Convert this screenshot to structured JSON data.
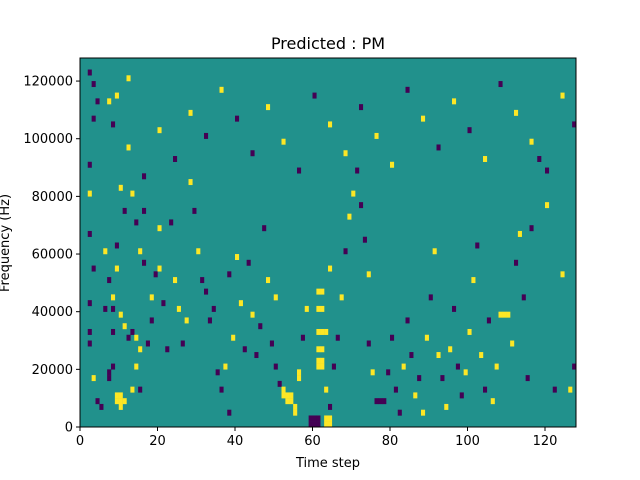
{
  "chart_data": {
    "type": "heatmap",
    "title": "Predicted : PM",
    "xlabel": "Time step",
    "ylabel": "Frequency (Hz)",
    "xlim": [
      0,
      128
    ],
    "ylim": [
      0,
      128000
    ],
    "x_ticks": [
      0,
      20,
      40,
      60,
      80,
      100,
      120
    ],
    "y_ticks": [
      0,
      20000,
      40000,
      60000,
      80000,
      100000,
      120000
    ],
    "x_tick_labels": [
      "0",
      "20",
      "40",
      "60",
      "80",
      "100",
      "120"
    ],
    "y_tick_labels": [
      "0",
      "20000",
      "40000",
      "60000",
      "80000",
      "100000",
      "120000"
    ],
    "n_time_steps": 128,
    "n_freq_bins": 64,
    "freq_bin_width": 2000,
    "colors": {
      "background": "#21918c",
      "high": "#fde725",
      "low": "#440154"
    },
    "cells": [
      {
        "t": 2,
        "f": 61,
        "v": "low"
      },
      {
        "t": 3,
        "f": 59,
        "v": "low"
      },
      {
        "t": 3,
        "f": 53,
        "v": "low"
      },
      {
        "t": 4,
        "f": 56,
        "v": "low"
      },
      {
        "t": 2,
        "f": 45,
        "v": "low"
      },
      {
        "t": 2,
        "f": 40,
        "v": "high"
      },
      {
        "t": 2,
        "f": 33,
        "v": "low"
      },
      {
        "t": 3,
        "f": 27,
        "v": "low"
      },
      {
        "t": 2,
        "f": 21,
        "v": "low"
      },
      {
        "t": 2,
        "f": 16,
        "v": "low"
      },
      {
        "t": 2,
        "f": 14,
        "v": "low"
      },
      {
        "t": 3,
        "f": 8,
        "v": "high"
      },
      {
        "t": 4,
        "f": 4,
        "v": "low"
      },
      {
        "t": 5,
        "f": 3,
        "v": "low"
      },
      {
        "t": 6,
        "f": 30,
        "v": "high"
      },
      {
        "t": 6,
        "f": 20,
        "v": "low"
      },
      {
        "t": 7,
        "f": 25,
        "v": "low"
      },
      {
        "t": 7,
        "f": 8,
        "v": "low"
      },
      {
        "t": 8,
        "f": 20,
        "v": "low"
      },
      {
        "t": 8,
        "f": 16,
        "v": "low"
      },
      {
        "t": 9,
        "f": 4,
        "v": "high"
      },
      {
        "t": 9,
        "f": 5,
        "v": "high"
      },
      {
        "t": 10,
        "f": 4,
        "v": "high"
      },
      {
        "t": 10,
        "f": 5,
        "v": "high"
      },
      {
        "t": 11,
        "f": 4,
        "v": "high"
      },
      {
        "t": 10,
        "f": 3,
        "v": "high"
      },
      {
        "t": 7,
        "f": 9,
        "v": "low"
      },
      {
        "t": 8,
        "f": 10,
        "v": "low"
      },
      {
        "t": 8,
        "f": 22,
        "v": "high"
      },
      {
        "t": 9,
        "f": 27,
        "v": "high"
      },
      {
        "t": 9,
        "f": 31,
        "v": "low"
      },
      {
        "t": 10,
        "f": 19,
        "v": "high"
      },
      {
        "t": 11,
        "f": 17,
        "v": "high"
      },
      {
        "t": 12,
        "f": 15,
        "v": "low"
      },
      {
        "t": 13,
        "f": 16,
        "v": "low"
      },
      {
        "t": 13,
        "f": 6,
        "v": "high"
      },
      {
        "t": 14,
        "f": 15,
        "v": "high"
      },
      {
        "t": 14,
        "f": 10,
        "v": "high"
      },
      {
        "t": 15,
        "f": 13,
        "v": "high"
      },
      {
        "t": 15,
        "f": 6,
        "v": "low"
      },
      {
        "t": 7,
        "f": 56,
        "v": "high"
      },
      {
        "t": 8,
        "f": 52,
        "v": "low"
      },
      {
        "t": 9,
        "f": 57,
        "v": "high"
      },
      {
        "t": 10,
        "f": 41,
        "v": "high"
      },
      {
        "t": 11,
        "f": 37,
        "v": "low"
      },
      {
        "t": 12,
        "f": 60,
        "v": "high"
      },
      {
        "t": 13,
        "f": 40,
        "v": "high"
      },
      {
        "t": 14,
        "f": 35,
        "v": "low"
      },
      {
        "t": 15,
        "f": 30,
        "v": "high"
      },
      {
        "t": 16,
        "f": 37,
        "v": "low"
      },
      {
        "t": 16,
        "f": 28,
        "v": "low"
      },
      {
        "t": 17,
        "f": 14,
        "v": "low"
      },
      {
        "t": 18,
        "f": 18,
        "v": "low"
      },
      {
        "t": 18,
        "f": 22,
        "v": "high"
      },
      {
        "t": 19,
        "f": 26,
        "v": "low"
      },
      {
        "t": 20,
        "f": 27,
        "v": "high"
      },
      {
        "t": 20,
        "f": 34,
        "v": "high"
      },
      {
        "t": 21,
        "f": 21,
        "v": "low"
      },
      {
        "t": 22,
        "f": 13,
        "v": "low"
      },
      {
        "t": 23,
        "f": 35,
        "v": "low"
      },
      {
        "t": 24,
        "f": 25,
        "v": "high"
      },
      {
        "t": 25,
        "f": 20,
        "v": "high"
      },
      {
        "t": 26,
        "f": 14,
        "v": "low"
      },
      {
        "t": 27,
        "f": 18,
        "v": "high"
      },
      {
        "t": 28,
        "f": 42,
        "v": "high"
      },
      {
        "t": 29,
        "f": 37,
        "v": "low"
      },
      {
        "t": 30,
        "f": 30,
        "v": "high"
      },
      {
        "t": 31,
        "f": 25,
        "v": "low"
      },
      {
        "t": 32,
        "f": 23,
        "v": "low"
      },
      {
        "t": 33,
        "f": 18,
        "v": "low"
      },
      {
        "t": 34,
        "f": 20,
        "v": "low"
      },
      {
        "t": 35,
        "f": 9,
        "v": "low"
      },
      {
        "t": 36,
        "f": 6,
        "v": "low"
      },
      {
        "t": 37,
        "f": 10,
        "v": "high"
      },
      {
        "t": 38,
        "f": 2,
        "v": "low"
      },
      {
        "t": 38,
        "f": 26,
        "v": "low"
      },
      {
        "t": 39,
        "f": 15,
        "v": "high"
      },
      {
        "t": 40,
        "f": 29,
        "v": "high"
      },
      {
        "t": 41,
        "f": 21,
        "v": "high"
      },
      {
        "t": 42,
        "f": 13,
        "v": "low"
      },
      {
        "t": 43,
        "f": 28,
        "v": "low"
      },
      {
        "t": 44,
        "f": 19,
        "v": "high"
      },
      {
        "t": 45,
        "f": 12,
        "v": "low"
      },
      {
        "t": 46,
        "f": 17,
        "v": "low"
      },
      {
        "t": 47,
        "f": 34,
        "v": "low"
      },
      {
        "t": 48,
        "f": 25,
        "v": "high"
      },
      {
        "t": 49,
        "f": 14,
        "v": "low"
      },
      {
        "t": 50,
        "f": 10,
        "v": "low"
      },
      {
        "t": 51,
        "f": 7,
        "v": "low"
      },
      {
        "t": 50,
        "f": 22,
        "v": "high"
      },
      {
        "t": 52,
        "f": 5,
        "v": "high"
      },
      {
        "t": 52,
        "f": 6,
        "v": "high"
      },
      {
        "t": 53,
        "f": 4,
        "v": "high"
      },
      {
        "t": 53,
        "f": 5,
        "v": "high"
      },
      {
        "t": 54,
        "f": 4,
        "v": "high"
      },
      {
        "t": 54,
        "f": 5,
        "v": "high"
      },
      {
        "t": 55,
        "f": 2,
        "v": "high"
      },
      {
        "t": 55,
        "f": 3,
        "v": "high"
      },
      {
        "t": 56,
        "f": 8,
        "v": "high"
      },
      {
        "t": 56,
        "f": 9,
        "v": "high"
      },
      {
        "t": 57,
        "f": 15,
        "v": "low"
      },
      {
        "t": 58,
        "f": 20,
        "v": "high"
      },
      {
        "t": 59,
        "f": 0,
        "v": "low"
      },
      {
        "t": 59,
        "f": 1,
        "v": "low"
      },
      {
        "t": 60,
        "f": 0,
        "v": "low"
      },
      {
        "t": 60,
        "f": 1,
        "v": "low"
      },
      {
        "t": 61,
        "f": 1,
        "v": "low"
      },
      {
        "t": 61,
        "f": 0,
        "v": "low"
      },
      {
        "t": 61,
        "f": 10,
        "v": "high"
      },
      {
        "t": 61,
        "f": 11,
        "v": "high"
      },
      {
        "t": 62,
        "f": 10,
        "v": "high"
      },
      {
        "t": 62,
        "f": 11,
        "v": "high"
      },
      {
        "t": 61,
        "f": 13,
        "v": "high"
      },
      {
        "t": 62,
        "f": 13,
        "v": "high"
      },
      {
        "t": 61,
        "f": 16,
        "v": "high"
      },
      {
        "t": 62,
        "f": 16,
        "v": "high"
      },
      {
        "t": 63,
        "f": 16,
        "v": "high"
      },
      {
        "t": 61,
        "f": 20,
        "v": "high"
      },
      {
        "t": 62,
        "f": 20,
        "v": "high"
      },
      {
        "t": 61,
        "f": 23,
        "v": "high"
      },
      {
        "t": 62,
        "f": 23,
        "v": "high"
      },
      {
        "t": 63,
        "f": 0,
        "v": "high"
      },
      {
        "t": 63,
        "f": 1,
        "v": "high"
      },
      {
        "t": 64,
        "f": 0,
        "v": "high"
      },
      {
        "t": 64,
        "f": 1,
        "v": "high"
      },
      {
        "t": 63,
        "f": 6,
        "v": "high"
      },
      {
        "t": 64,
        "f": 3,
        "v": "low"
      },
      {
        "t": 64,
        "f": 27,
        "v": "high"
      },
      {
        "t": 65,
        "f": 10,
        "v": "low"
      },
      {
        "t": 66,
        "f": 15,
        "v": "low"
      },
      {
        "t": 67,
        "f": 22,
        "v": "high"
      },
      {
        "t": 68,
        "f": 30,
        "v": "low"
      },
      {
        "t": 69,
        "f": 36,
        "v": "high"
      },
      {
        "t": 70,
        "f": 40,
        "v": "high"
      },
      {
        "t": 71,
        "f": 44,
        "v": "low"
      },
      {
        "t": 72,
        "f": 38,
        "v": "low"
      },
      {
        "t": 73,
        "f": 32,
        "v": "low"
      },
      {
        "t": 74,
        "f": 26,
        "v": "high"
      },
      {
        "t": 74,
        "f": 14,
        "v": "low"
      },
      {
        "t": 75,
        "f": 9,
        "v": "high"
      },
      {
        "t": 76,
        "f": 4,
        "v": "low"
      },
      {
        "t": 77,
        "f": 4,
        "v": "low"
      },
      {
        "t": 78,
        "f": 4,
        "v": "low"
      },
      {
        "t": 79,
        "f": 9,
        "v": "low"
      },
      {
        "t": 80,
        "f": 15,
        "v": "low"
      },
      {
        "t": 81,
        "f": 6,
        "v": "low"
      },
      {
        "t": 82,
        "f": 2,
        "v": "low"
      },
      {
        "t": 83,
        "f": 10,
        "v": "high"
      },
      {
        "t": 84,
        "f": 18,
        "v": "low"
      },
      {
        "t": 85,
        "f": 12,
        "v": "low"
      },
      {
        "t": 86,
        "f": 5,
        "v": "high"
      },
      {
        "t": 87,
        "f": 8,
        "v": "low"
      },
      {
        "t": 88,
        "f": 2,
        "v": "high"
      },
      {
        "t": 89,
        "f": 15,
        "v": "high"
      },
      {
        "t": 90,
        "f": 22,
        "v": "low"
      },
      {
        "t": 91,
        "f": 30,
        "v": "high"
      },
      {
        "t": 92,
        "f": 12,
        "v": "high"
      },
      {
        "t": 93,
        "f": 8,
        "v": "low"
      },
      {
        "t": 94,
        "f": 3,
        "v": "high"
      },
      {
        "t": 95,
        "f": 13,
        "v": "high"
      },
      {
        "t": 96,
        "f": 20,
        "v": "low"
      },
      {
        "t": 97,
        "f": 10,
        "v": "low"
      },
      {
        "t": 98,
        "f": 5,
        "v": "low"
      },
      {
        "t": 99,
        "f": 9,
        "v": "high"
      },
      {
        "t": 100,
        "f": 16,
        "v": "high"
      },
      {
        "t": 101,
        "f": 25,
        "v": "high"
      },
      {
        "t": 102,
        "f": 31,
        "v": "low"
      },
      {
        "t": 103,
        "f": 12,
        "v": "high"
      },
      {
        "t": 104,
        "f": 6,
        "v": "low"
      },
      {
        "t": 105,
        "f": 18,
        "v": "low"
      },
      {
        "t": 106,
        "f": 4,
        "v": "high"
      },
      {
        "t": 107,
        "f": 10,
        "v": "high"
      },
      {
        "t": 108,
        "f": 19,
        "v": "high"
      },
      {
        "t": 109,
        "f": 19,
        "v": "high"
      },
      {
        "t": 110,
        "f": 19,
        "v": "high"
      },
      {
        "t": 111,
        "f": 14,
        "v": "high"
      },
      {
        "t": 112,
        "f": 28,
        "v": "low"
      },
      {
        "t": 113,
        "f": 33,
        "v": "high"
      },
      {
        "t": 114,
        "f": 22,
        "v": "low"
      },
      {
        "t": 115,
        "f": 8,
        "v": "low"
      },
      {
        "t": 116,
        "f": 34,
        "v": "low"
      },
      {
        "t": 118,
        "f": 46,
        "v": "low"
      },
      {
        "t": 120,
        "f": 38,
        "v": "high"
      },
      {
        "t": 122,
        "f": 6,
        "v": "low"
      },
      {
        "t": 124,
        "f": 26,
        "v": "high"
      },
      {
        "t": 126,
        "f": 6,
        "v": "high"
      },
      {
        "t": 127,
        "f": 10,
        "v": "low"
      },
      {
        "t": 12,
        "f": 48,
        "v": "high"
      },
      {
        "t": 16,
        "f": 43,
        "v": "low"
      },
      {
        "t": 20,
        "f": 51,
        "v": "high"
      },
      {
        "t": 24,
        "f": 46,
        "v": "low"
      },
      {
        "t": 28,
        "f": 54,
        "v": "high"
      },
      {
        "t": 32,
        "f": 50,
        "v": "low"
      },
      {
        "t": 36,
        "f": 58,
        "v": "high"
      },
      {
        "t": 40,
        "f": 53,
        "v": "low"
      },
      {
        "t": 44,
        "f": 47,
        "v": "low"
      },
      {
        "t": 48,
        "f": 55,
        "v": "high"
      },
      {
        "t": 52,
        "f": 49,
        "v": "high"
      },
      {
        "t": 56,
        "f": 44,
        "v": "low"
      },
      {
        "t": 60,
        "f": 57,
        "v": "low"
      },
      {
        "t": 64,
        "f": 52,
        "v": "high"
      },
      {
        "t": 68,
        "f": 47,
        "v": "high"
      },
      {
        "t": 72,
        "f": 55,
        "v": "low"
      },
      {
        "t": 76,
        "f": 50,
        "v": "high"
      },
      {
        "t": 80,
        "f": 45,
        "v": "high"
      },
      {
        "t": 84,
        "f": 58,
        "v": "low"
      },
      {
        "t": 88,
        "f": 53,
        "v": "high"
      },
      {
        "t": 92,
        "f": 48,
        "v": "low"
      },
      {
        "t": 96,
        "f": 56,
        "v": "high"
      },
      {
        "t": 100,
        "f": 51,
        "v": "low"
      },
      {
        "t": 104,
        "f": 46,
        "v": "high"
      },
      {
        "t": 108,
        "f": 59,
        "v": "low"
      },
      {
        "t": 112,
        "f": 54,
        "v": "high"
      },
      {
        "t": 116,
        "f": 49,
        "v": "high"
      },
      {
        "t": 120,
        "f": 44,
        "v": "low"
      },
      {
        "t": 124,
        "f": 57,
        "v": "high"
      },
      {
        "t": 127,
        "f": 52,
        "v": "low"
      }
    ]
  }
}
